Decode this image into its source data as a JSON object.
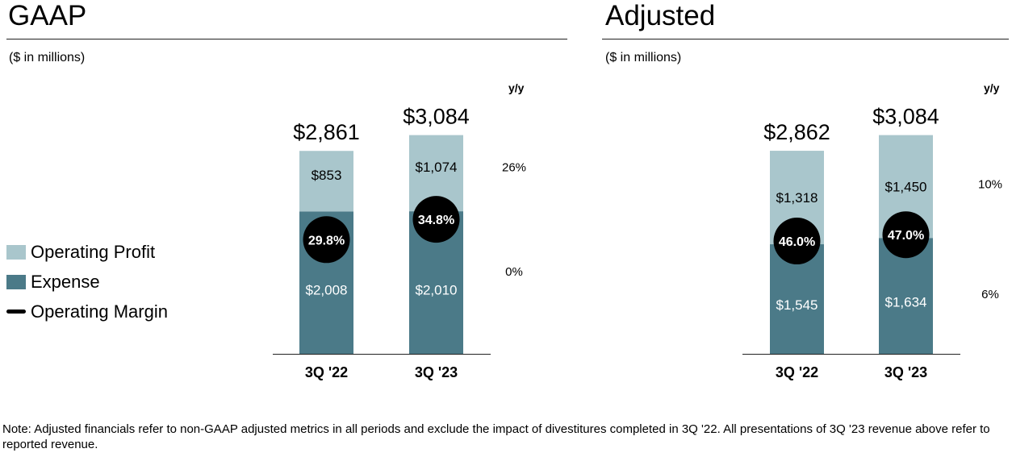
{
  "colors": {
    "operating_profit": "#a9c6cc",
    "expense": "#4b7a88",
    "margin_bg": "#000000",
    "axis": "#222222"
  },
  "legend": {
    "operating_profit": "Operating Profit",
    "expense": "Expense",
    "operating_margin": "Operating Margin"
  },
  "note": "Note: Adjusted financials refer to non-GAAP adjusted metrics in all periods and exclude the impact of divestitures completed in 3Q '22. All presentations of 3Q '23 revenue above refer to reported revenue.",
  "chart_data": [
    {
      "type": "bar",
      "stacked": true,
      "title": "GAAP",
      "subtitle": "($ in millions)",
      "yy_header": "y/y",
      "categories": [
        "3Q '22",
        "3Q '23"
      ],
      "series": [
        {
          "name": "Expense",
          "values": [
            2008,
            2010
          ],
          "labels": [
            "$2,008",
            "$2,010"
          ],
          "yy": "0%"
        },
        {
          "name": "Operating Profit",
          "values": [
            853,
            1074
          ],
          "labels": [
            "$853",
            "$1,074"
          ],
          "yy": "26%"
        }
      ],
      "totals": [
        2861,
        3084
      ],
      "total_labels": [
        "$2,861",
        "$3,084"
      ],
      "operating_margin": [
        29.8,
        34.8
      ],
      "operating_margin_labels": [
        "29.8%",
        "34.8%"
      ],
      "ylim": [
        0,
        3100
      ]
    },
    {
      "type": "bar",
      "stacked": true,
      "title": "Adjusted",
      "subtitle": "($ in millions)",
      "yy_header": "y/y",
      "categories": [
        "3Q '22",
        "3Q '23"
      ],
      "series": [
        {
          "name": "Expense",
          "values": [
            1545,
            1634
          ],
          "labels": [
            "$1,545",
            "$1,634"
          ],
          "yy": "6%"
        },
        {
          "name": "Operating Profit",
          "values": [
            1318,
            1450
          ],
          "labels": [
            "$1,318",
            "$1,450"
          ],
          "yy": "10%"
        }
      ],
      "totals": [
        2862,
        3084
      ],
      "total_labels": [
        "$2,862",
        "$3,084"
      ],
      "operating_margin": [
        46.0,
        47.0
      ],
      "operating_margin_labels": [
        "46.0%",
        "47.0%"
      ],
      "ylim": [
        0,
        3100
      ]
    }
  ]
}
